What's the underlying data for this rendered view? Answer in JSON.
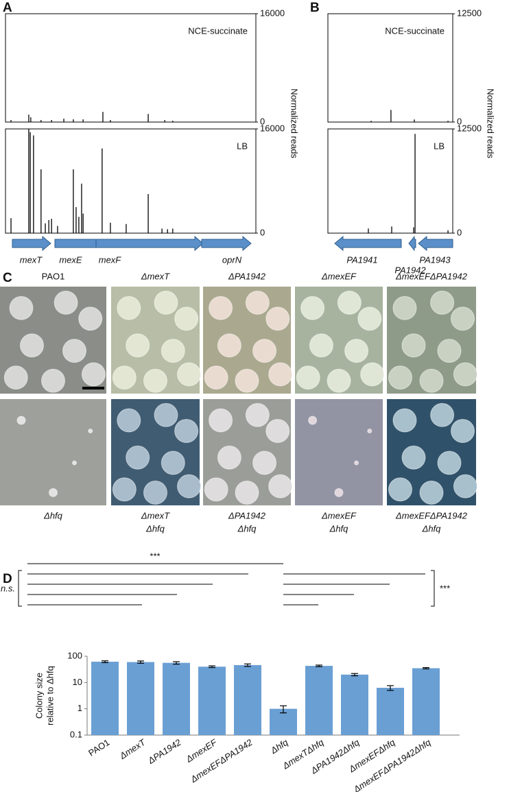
{
  "figure": {
    "panel_labels": [
      "A",
      "B",
      "C",
      "D"
    ]
  },
  "chart_data": [
    {
      "type": "spike",
      "label": "NCE-succinate",
      "y_label": "Normalized reads",
      "x": [
        2.2,
        9.3,
        10.1,
        14.2,
        18.4,
        23.3,
        27.1,
        31.0,
        38.9,
        41.9,
        57.0,
        63.6,
        66.8
      ],
      "values": [
        300,
        1100,
        700,
        300,
        300,
        500,
        400,
        400,
        1500,
        300,
        1200,
        300,
        200
      ],
      "xlim": [
        0,
        100
      ],
      "ylim": [
        0,
        16000
      ],
      "yticks": [
        0,
        16000
      ],
      "color": "#000000"
    },
    {
      "type": "spike",
      "label": "LB",
      "x": [
        2.2,
        9.3,
        9.9,
        11.2,
        14.2,
        15.9,
        17.3,
        18.4,
        20.8,
        27.1,
        28.2,
        29.3,
        30.4,
        31.0,
        38.6,
        41.9,
        48.2,
        57.0,
        62.5,
        64.7,
        66.8
      ],
      "values": [
        2300,
        16000,
        15500,
        15000,
        9800,
        1500,
        2000,
        2200,
        1100,
        9800,
        4000,
        2500,
        7600,
        3000,
        13000,
        1600,
        1400,
        6000,
        700,
        600,
        700
      ],
      "xlim": [
        0,
        100
      ],
      "ylim": [
        0,
        16000
      ],
      "yticks": [
        0,
        16000
      ],
      "color": "#000000"
    },
    {
      "type": "spike",
      "label": "NCE-succinate",
      "y_label": "Normalized reads",
      "x": [
        34.6,
        50.5,
        69.2,
        96.2
      ],
      "values": [
        150,
        1400,
        300,
        150
      ],
      "xlim": [
        0,
        100
      ],
      "ylim": [
        0,
        12500
      ],
      "yticks": [
        0,
        12500
      ],
      "color": "#000000"
    },
    {
      "type": "spike",
      "label": "LB",
      "x": [
        32.4,
        51.1,
        68.7,
        69.8,
        96.2
      ],
      "values": [
        550,
        800,
        700,
        11900,
        350
      ],
      "xlim": [
        0,
        100
      ],
      "ylim": [
        0,
        12500
      ],
      "yticks": [
        0,
        12500
      ],
      "color": "#000000"
    },
    {
      "type": "bar",
      "y_label": [
        "Colony size",
        "relative to Δhfq"
      ],
      "categories": [
        "PAO1",
        "ΔmexT",
        "ΔPA1942",
        "ΔmexEF",
        "ΔmexEFΔPA1942",
        "Δhfq",
        "ΔmexTΔhfq",
        "ΔPA1942Δhfq",
        "ΔmexEFΔhfq",
        "ΔmexEFΔPA1942Δhfq"
      ],
      "values": [
        62,
        60,
        56,
        40,
        46,
        1.0,
        43,
        20,
        6.3,
        35
      ],
      "errors": [
        5,
        6,
        6,
        3,
        5,
        0.3,
        3,
        2,
        1.3,
        2
      ],
      "ylim": [
        0.1,
        100
      ],
      "yticks": [
        0.1,
        1,
        10,
        100
      ],
      "log_scale": true,
      "color": "#6a9fd4"
    }
  ],
  "panel_a_genes": [
    "mexT",
    "mexE",
    "mexF",
    "oprN"
  ],
  "panel_b_genes": [
    "PA1941",
    "PA1942",
    "PA1943"
  ],
  "panel_c": {
    "top_labels": [
      "PAO1",
      "ΔmexT",
      "ΔPA1942",
      "ΔmexEF",
      "ΔmexEFΔPA1942"
    ],
    "bottom_labels": [
      [
        "Δhfq"
      ],
      [
        "ΔmexT",
        "Δhfq"
      ],
      [
        "ΔPA1942",
        "Δhfq"
      ],
      [
        "ΔmexEF",
        "Δhfq"
      ],
      [
        "ΔmexEFΔPA1942",
        "Δhfq"
      ]
    ]
  },
  "panel_d_annotations": [
    "***",
    "n.s.",
    "***"
  ]
}
